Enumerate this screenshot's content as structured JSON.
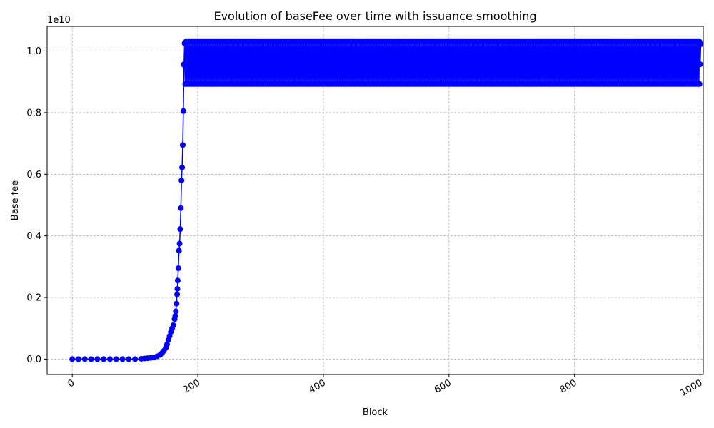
{
  "chart_data": {
    "type": "line",
    "title": "Evolution of baseFee over time with issuance smoothing",
    "xlabel": "Block",
    "ylabel": "Base fee",
    "y_offset_label": "1e10",
    "xlim": [
      -40,
      1005
    ],
    "ylim": [
      -0.05,
      1.08
    ],
    "y_multiplier": 10000000000,
    "x_ticks": [
      0,
      200,
      400,
      600,
      800,
      1000
    ],
    "x_tick_labels": [
      "0",
      "200",
      "400",
      "600",
      "800",
      "1000"
    ],
    "y_ticks": [
      0.0,
      0.2,
      0.4,
      0.6,
      0.8,
      1.0
    ],
    "y_tick_labels": [
      "0.0",
      "0.2",
      "0.4",
      "0.6",
      "0.8",
      "1.0"
    ],
    "grid": true,
    "series": [
      {
        "color": "#0000ff",
        "marker": "circle",
        "points": [
          [
            0,
            0.0
          ],
          [
            10,
            0.0
          ],
          [
            20,
            0.0
          ],
          [
            30,
            0.0
          ],
          [
            40,
            0.0
          ],
          [
            50,
            0.0
          ],
          [
            60,
            0.0
          ],
          [
            70,
            0.0
          ],
          [
            80,
            0.0
          ],
          [
            90,
            0.0
          ],
          [
            100,
            0.0
          ],
          [
            110,
            0.001
          ],
          [
            115,
            0.002
          ],
          [
            120,
            0.003
          ],
          [
            125,
            0.004
          ],
          [
            130,
            0.006
          ],
          [
            135,
            0.009
          ],
          [
            140,
            0.014
          ],
          [
            143,
            0.02
          ],
          [
            146,
            0.027
          ],
          [
            149,
            0.037
          ],
          [
            151,
            0.048
          ],
          [
            153,
            0.062
          ],
          [
            155,
            0.075
          ],
          [
            157,
            0.088
          ],
          [
            159,
            0.1
          ],
          [
            161,
            0.11
          ],
          [
            163,
            0.13
          ],
          [
            164,
            0.14
          ],
          [
            165,
            0.155
          ],
          [
            166,
            0.18
          ],
          [
            167,
            0.21
          ],
          [
            167.5,
            0.228
          ],
          [
            168,
            0.255
          ],
          [
            169,
            0.295
          ],
          [
            170,
            0.352
          ],
          [
            171,
            0.375
          ],
          [
            172,
            0.422
          ],
          [
            173,
            0.49
          ],
          [
            174,
            0.58
          ],
          [
            175,
            0.622
          ],
          [
            176,
            0.695
          ],
          [
            177,
            0.805
          ],
          [
            178,
            0.955
          ],
          [
            179,
            1.025
          ],
          [
            180,
            0.893
          ],
          [
            181,
            1.03
          ],
          [
            182,
            0.893
          ]
        ],
        "oscillation": {
          "x_start": 182,
          "x_end": 999,
          "high": 1.032,
          "low": 0.893,
          "mid": 0.957,
          "near_high": 1.022,
          "final_points": [
            [
              998,
              0.893
            ],
            [
              999,
              1.03
            ],
            [
              1000,
              0.957
            ],
            [
              1001,
              1.022
            ]
          ]
        }
      }
    ]
  }
}
